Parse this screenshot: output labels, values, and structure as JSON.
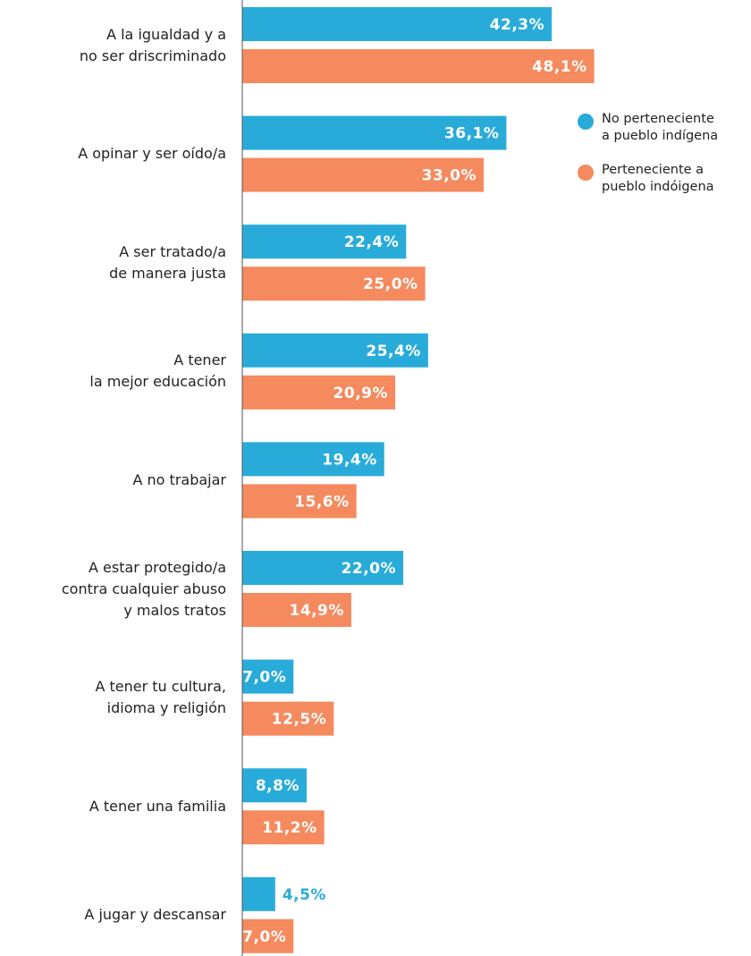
{
  "chart_data": {
    "type": "hbar",
    "categories": [
      "A la igualdad y a\nno ser driscriminado",
      "A opinar y ser oído/a",
      "A ser tratado/a\nde manera justa",
      "A tener\nla mejor educación",
      "A no trabajar",
      "A estar protegido/a\ncontra cualquier abuso\ny malos tratos",
      "A tener tu cultura,\nidioma y religión",
      "A tener una familia",
      "A jugar y descansar"
    ],
    "series": [
      {
        "name": "No perteneciente\na pueblo indígena",
        "color": "#29abd9",
        "values": [
          42.3,
          36.1,
          22.4,
          25.4,
          19.4,
          22.0,
          7.0,
          8.8,
          4.5
        ],
        "value_labels": [
          "42,3%",
          "36,1%",
          "22,4%",
          "25,4%",
          "19,4%",
          "22,0%",
          "7,0%",
          "8,8%",
          "4,5%"
        ]
      },
      {
        "name": "Perteneciente a\npueblo indóigena",
        "color": "#f58a5e",
        "values": [
          48.1,
          33.0,
          25.0,
          20.9,
          15.6,
          14.9,
          12.5,
          11.2,
          7.0
        ],
        "value_labels": [
          "48,1%",
          "33,0%",
          "25,0%",
          "20,9%",
          "15,6%",
          "14,9%",
          "12,5%",
          "11,2%",
          "7,0%"
        ]
      }
    ],
    "xlim": [
      0,
      60
    ],
    "legend": "upper right"
  }
}
